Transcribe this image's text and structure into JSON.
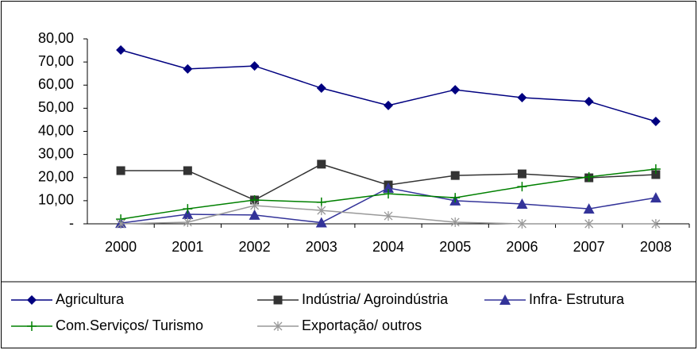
{
  "chart_data": {
    "type": "line",
    "categories": [
      "2000",
      "2001",
      "2002",
      "2003",
      "2004",
      "2005",
      "2006",
      "2007",
      "2008"
    ],
    "series": [
      {
        "name": "Agricultura",
        "color": "#000080",
        "marker": "diamond",
        "values": [
          75.2,
          67.0,
          68.3,
          58.7,
          51.2,
          58.0,
          54.6,
          52.9,
          44.3
        ]
      },
      {
        "name": "Indústria/ Agroindústria",
        "color": "#333333",
        "marker": "square",
        "values": [
          23.0,
          23.0,
          10.3,
          25.8,
          16.8,
          20.9,
          21.6,
          19.9,
          21.3
        ]
      },
      {
        "name": "Infra- Estrutura",
        "color": "#333399",
        "marker": "triangle",
        "values": [
          0.3,
          4.1,
          3.8,
          0.5,
          15.5,
          10.0,
          8.6,
          6.5,
          11.3
        ]
      },
      {
        "name": "Com.Serviços/ Turismo",
        "color": "#008000",
        "marker": "plus",
        "values": [
          2.0,
          6.5,
          10.3,
          9.3,
          13.0,
          11.3,
          16.1,
          20.3,
          23.7
        ]
      },
      {
        "name": "Exportação/ outros",
        "color": "#999999",
        "marker": "cross",
        "values": [
          0,
          0.7,
          7.9,
          5.8,
          3.4,
          0.7,
          0,
          0,
          0
        ]
      }
    ],
    "ylim": [
      0,
      80
    ],
    "yticks": [
      {
        "value": 0,
        "label": "-"
      },
      {
        "value": 10,
        "label": "10,00"
      },
      {
        "value": 20,
        "label": "20,00"
      },
      {
        "value": 30,
        "label": "30,00"
      },
      {
        "value": 40,
        "label": "40,00"
      },
      {
        "value": 50,
        "label": "50,00"
      },
      {
        "value": 60,
        "label": "60,00"
      },
      {
        "value": 70,
        "label": "70,00"
      },
      {
        "value": 80,
        "label": "80,00"
      }
    ],
    "grid": false,
    "legend": "bottom"
  }
}
